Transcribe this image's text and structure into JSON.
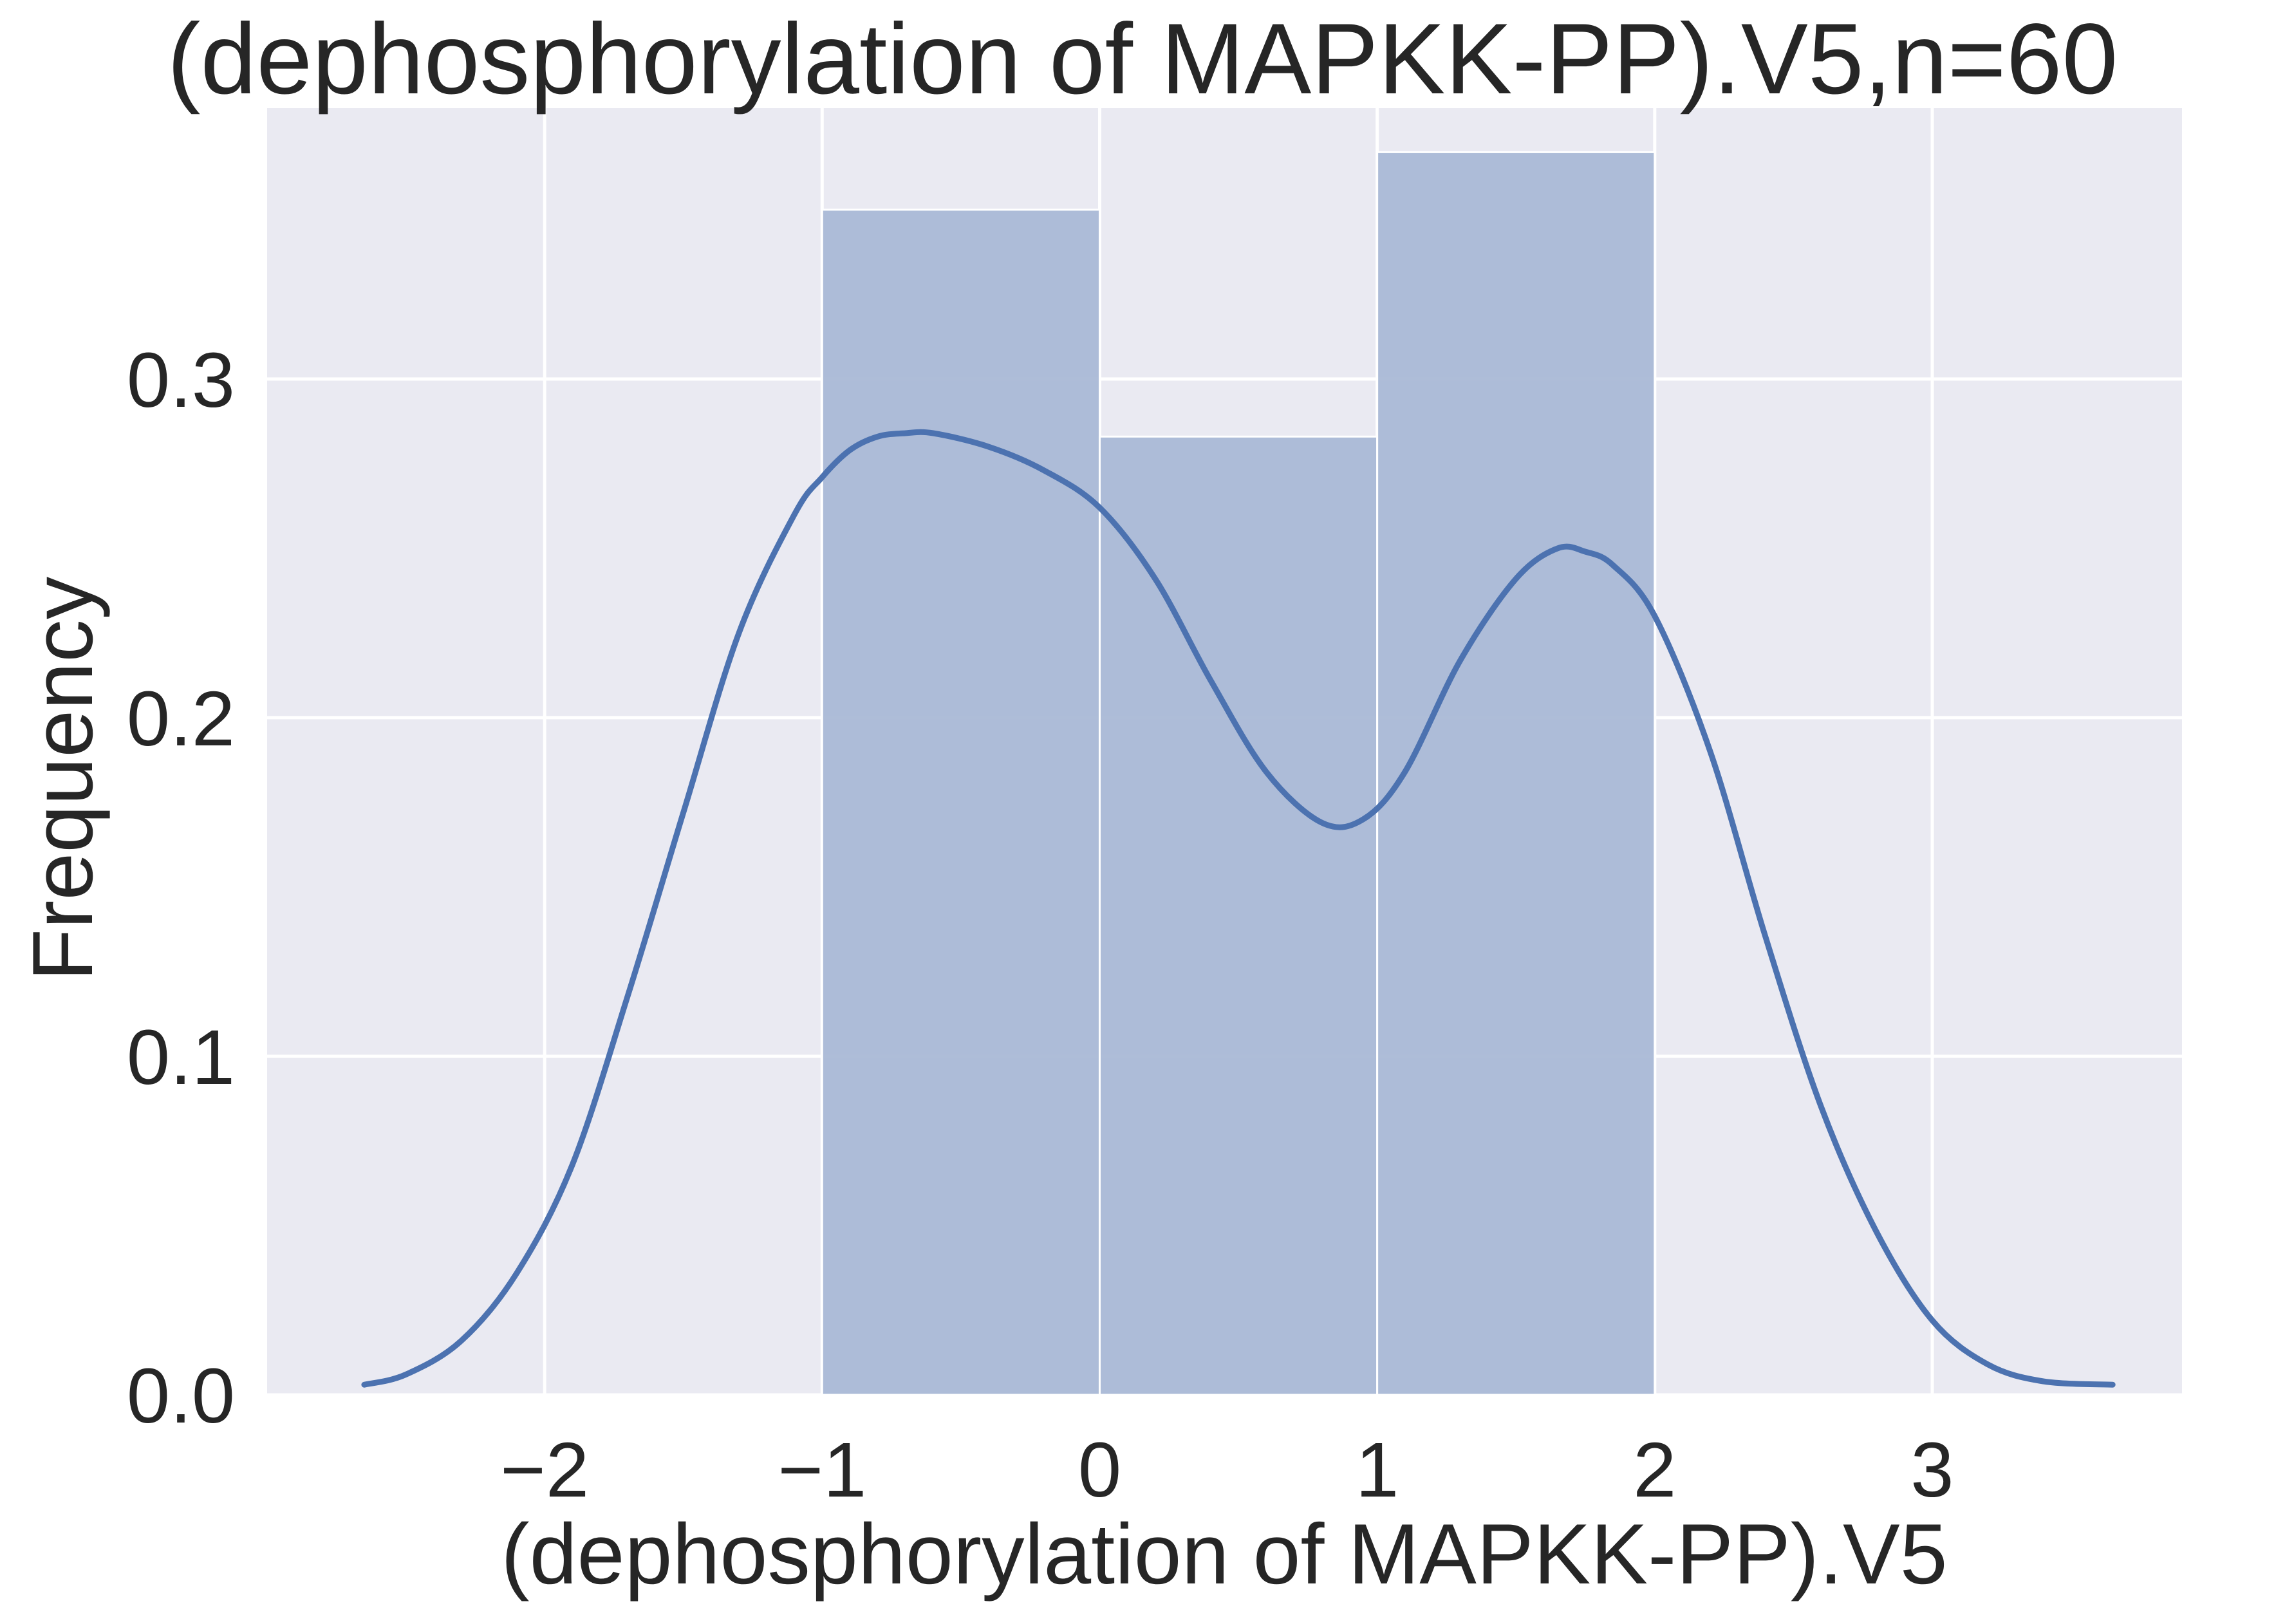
{
  "chart_data": {
    "type": "histogram",
    "title": "(dephosphorylation of MAPKK-PP).V5,n=60",
    "xlabel": "(dephosphorylation of MAPKK-PP).V5",
    "ylabel": "Frequency",
    "xlim": [
      -3.0,
      3.9
    ],
    "ylim": [
      0.0,
      0.38
    ],
    "xticks": [
      -2,
      -1,
      0,
      1,
      2,
      3
    ],
    "xtick_labels": [
      "−2",
      "−1",
      "0",
      "1",
      "2",
      "3"
    ],
    "yticks": [
      0.0,
      0.1,
      0.2,
      0.3
    ],
    "ytick_labels": [
      "0.0",
      "0.1",
      "0.2",
      "0.3"
    ],
    "grid": true,
    "bars": [
      {
        "x0": -1,
        "x1": 0,
        "value": 0.35
      },
      {
        "x0": 0,
        "x1": 1,
        "value": 0.283
      },
      {
        "x0": 1,
        "x1": 2,
        "value": 0.367
      }
    ],
    "kde": {
      "name": "density",
      "x": [
        -2.65,
        -2.5,
        -2.3,
        -2.1,
        -1.9,
        -1.7,
        -1.5,
        -1.3,
        -1.1,
        -1.0,
        -0.9,
        -0.8,
        -0.7,
        -0.6,
        -0.4,
        -0.2,
        0.0,
        0.2,
        0.4,
        0.6,
        0.8,
        0.95,
        1.1,
        1.3,
        1.5,
        1.65,
        1.75,
        1.85,
        2.0,
        2.2,
        2.4,
        2.6,
        2.8,
        3.0,
        3.2,
        3.4,
        3.65
      ],
      "y": [
        0.003,
        0.006,
        0.016,
        0.036,
        0.068,
        0.118,
        0.172,
        0.225,
        0.26,
        0.271,
        0.279,
        0.283,
        0.284,
        0.284,
        0.28,
        0.273,
        0.262,
        0.241,
        0.211,
        0.184,
        0.169,
        0.17,
        0.184,
        0.217,
        0.241,
        0.25,
        0.249,
        0.245,
        0.23,
        0.19,
        0.135,
        0.085,
        0.048,
        0.022,
        0.009,
        0.004,
        0.003
      ]
    },
    "colors": {
      "background": "#eaeaf2",
      "bar_fill": "#aab9d6",
      "line": "#4c72b0",
      "grid": "#ffffff",
      "text": "#262626"
    }
  }
}
